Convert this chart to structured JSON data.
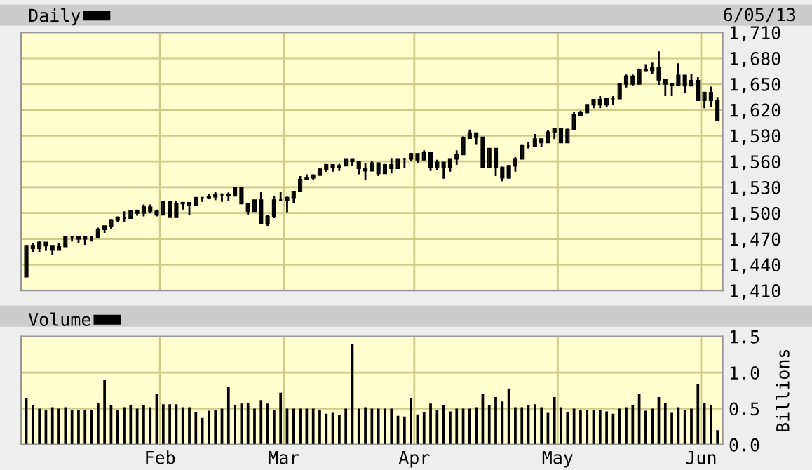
{
  "chart_data": [
    {
      "type": "candlestick",
      "legend": "top left",
      "grid": true,
      "tick_labels": "y",
      "annotations": [
        "6/05/13"
      ],
      "categories": [
        null,
        null,
        null,
        null,
        null,
        null,
        null,
        null,
        null,
        null,
        null,
        null,
        null,
        null,
        null,
        null,
        null,
        null,
        null,
        null,
        null,
        null,
        null,
        null,
        null,
        null,
        null,
        null,
        null,
        null,
        null,
        null,
        null,
        null,
        null,
        null,
        null,
        null,
        null,
        null,
        null,
        null,
        null,
        null,
        null,
        null,
        null,
        null,
        null,
        null,
        null,
        null,
        null,
        null,
        null,
        null,
        null,
        null,
        null,
        null,
        null,
        null,
        null,
        null,
        null,
        null,
        null,
        null,
        null,
        null,
        null,
        null,
        null,
        null,
        null,
        null,
        null,
        null,
        null,
        null,
        null,
        null,
        null,
        null,
        null,
        null,
        null,
        null,
        null,
        null,
        null,
        null,
        null,
        null,
        null,
        null,
        null,
        null,
        null,
        null,
        null,
        null,
        null,
        null,
        null,
        null,
        null
      ],
      "ylim": [
        1410,
        1710
      ],
      "yticks": [
        {
          "value": 1410,
          "label": "1,410"
        },
        {
          "value": 1440,
          "label": "1,440"
        },
        {
          "value": 1470,
          "label": "1,470"
        },
        {
          "value": 1500,
          "label": "1,500"
        },
        {
          "value": 1530,
          "label": "1,530"
        },
        {
          "value": 1560,
          "label": "1,560"
        },
        {
          "value": 1590,
          "label": "1,590"
        },
        {
          "value": 1620,
          "label": "1,620"
        },
        {
          "value": 1650,
          "label": "1,650"
        },
        {
          "value": 1680,
          "label": "1,680"
        },
        {
          "value": 1710,
          "label": "1,710"
        }
      ],
      "series": [
        {
          "name": "Daily",
          "color": "#000000",
          "ohlc": [
            [
              1426,
              1462,
              1426,
              1462
            ],
            [
              1462,
              1465,
              1455,
              1459
            ],
            [
              1459,
              1468,
              1455,
              1466
            ],
            [
              1466,
              1466,
              1456,
              1462
            ],
            [
              1462,
              1462,
              1451,
              1457
            ],
            [
              1457,
              1465,
              1457,
              1461
            ],
            [
              1461,
              1473,
              1461,
              1472
            ],
            [
              1472,
              1473,
              1467,
              1472
            ],
            [
              1472,
              1472,
              1465,
              1470
            ],
            [
              1470,
              1473,
              1463,
              1472
            ],
            [
              1472,
              1473,
              1467,
              1472
            ],
            [
              1472,
              1483,
              1472,
              1481
            ],
            [
              1481,
              1485,
              1477,
              1485
            ],
            [
              1485,
              1493,
              1481,
              1492
            ],
            [
              1492,
              1496,
              1490,
              1494
            ],
            [
              1494,
              1502,
              1490,
              1494
            ],
            [
              1494,
              1503,
              1494,
              1503
            ],
            [
              1503,
              1504,
              1497,
              1500
            ],
            [
              1500,
              1510,
              1496,
              1507
            ],
            [
              1507,
              1510,
              1500,
              1502
            ],
            [
              1502,
              1504,
              1496,
              1498
            ],
            [
              1498,
              1514,
              1498,
              1513
            ],
            [
              1513,
              1513,
              1495,
              1495
            ],
            [
              1495,
              1514,
              1495,
              1511
            ],
            [
              1511,
              1513,
              1504,
              1512
            ],
            [
              1512,
              1512,
              1498,
              1509
            ],
            [
              1509,
              1518,
              1509,
              1518
            ],
            [
              1518,
              1518,
              1513,
              1518
            ],
            [
              1518,
              1522,
              1516,
              1519
            ],
            [
              1519,
              1525,
              1515,
              1521
            ],
            [
              1521,
              1523,
              1513,
              1521
            ],
            [
              1521,
              1524,
              1514,
              1520
            ],
            [
              1520,
              1530,
              1520,
              1530
            ],
            [
              1530,
              1530,
              1511,
              1511
            ],
            [
              1511,
              1511,
              1498,
              1502
            ],
            [
              1502,
              1515,
              1502,
              1515
            ],
            [
              1515,
              1525,
              1488,
              1488
            ],
            [
              1488,
              1498,
              1485,
              1496
            ],
            [
              1496,
              1520,
              1494,
              1515
            ],
            [
              1515,
              1525,
              1514,
              1515
            ],
            [
              1515,
              1519,
              1501,
              1518
            ],
            [
              1518,
              1525,
              1512,
              1525
            ],
            [
              1525,
              1543,
              1525,
              1539
            ],
            [
              1539,
              1545,
              1539,
              1541
            ],
            [
              1541,
              1545,
              1539,
              1544
            ],
            [
              1544,
              1552,
              1544,
              1551
            ],
            [
              1551,
              1557,
              1548,
              1556
            ],
            [
              1556,
              1556,
              1548,
              1553
            ],
            [
              1553,
              1557,
              1549,
              1555
            ],
            [
              1555,
              1563,
              1555,
              1563
            ],
            [
              1563,
              1563,
              1555,
              1560
            ],
            [
              1560,
              1560,
              1545,
              1552
            ],
            [
              1552,
              1558,
              1538,
              1549
            ],
            [
              1549,
              1561,
              1549,
              1558
            ],
            [
              1558,
              1558,
              1543,
              1546
            ],
            [
              1546,
              1557,
              1546,
              1556
            ],
            [
              1556,
              1564,
              1546,
              1552
            ],
            [
              1552,
              1563,
              1552,
              1563
            ],
            [
              1563,
              1564,
              1552,
              1563
            ],
            [
              1563,
              1570,
              1561,
              1569
            ],
            [
              1569,
              1570,
              1558,
              1562
            ],
            [
              1562,
              1573,
              1562,
              1570
            ],
            [
              1570,
              1571,
              1549,
              1553
            ],
            [
              1553,
              1562,
              1550,
              1559
            ],
            [
              1559,
              1559,
              1540,
              1553
            ],
            [
              1553,
              1563,
              1548,
              1563
            ],
            [
              1563,
              1573,
              1556,
              1568
            ],
            [
              1568,
              1589,
              1568,
              1587
            ],
            [
              1587,
              1597,
              1587,
              1593
            ],
            [
              1593,
              1593,
              1580,
              1588
            ],
            [
              1588,
              1588,
              1553,
              1553
            ],
            [
              1553,
              1575,
              1553,
              1575
            ],
            [
              1575,
              1575,
              1543,
              1553
            ],
            [
              1553,
              1554,
              1537,
              1541
            ],
            [
              1541,
              1556,
              1540,
              1555
            ],
            [
              1555,
              1565,
              1548,
              1563
            ],
            [
              1563,
              1580,
              1563,
              1578
            ],
            [
              1578,
              1583,
              1575,
              1578
            ],
            [
              1578,
              1592,
              1578,
              1586
            ],
            [
              1586,
              1586,
              1577,
              1582
            ],
            [
              1582,
              1596,
              1582,
              1594
            ],
            [
              1594,
              1598,
              1586,
              1598
            ],
            [
              1598,
              1598,
              1582,
              1582
            ],
            [
              1582,
              1598,
              1582,
              1597
            ],
            [
              1597,
              1618,
              1597,
              1614
            ],
            [
              1614,
              1619,
              1613,
              1617
            ],
            [
              1617,
              1626,
              1616,
              1626
            ],
            [
              1626,
              1632,
              1622,
              1632
            ],
            [
              1632,
              1636,
              1622,
              1626
            ],
            [
              1626,
              1633,
              1623,
              1633
            ],
            [
              1633,
              1636,
              1626,
              1633
            ],
            [
              1633,
              1651,
              1633,
              1650
            ],
            [
              1650,
              1661,
              1646,
              1659
            ],
            [
              1659,
              1661,
              1648,
              1650
            ],
            [
              1650,
              1668,
              1650,
              1667
            ],
            [
              1667,
              1673,
              1665,
              1666
            ],
            [
              1666,
              1675,
              1662,
              1669
            ],
            [
              1669,
              1688,
              1649,
              1655
            ],
            [
              1655,
              1655,
              1636,
              1650
            ],
            [
              1650,
              1650,
              1636,
              1649
            ],
            [
              1649,
              1674,
              1649,
              1660
            ],
            [
              1660,
              1660,
              1640,
              1648
            ],
            [
              1648,
              1662,
              1648,
              1654
            ],
            [
              1654,
              1658,
              1631,
              1631
            ],
            [
              1631,
              1641,
              1622,
              1640
            ],
            [
              1640,
              1647,
              1623,
              1631
            ],
            [
              1631,
              1635,
              1608,
              1608
            ]
          ]
        }
      ]
    },
    {
      "type": "bar",
      "legend": "top left",
      "grid": true,
      "ylabel": "Billions",
      "categories": [
        null,
        null,
        null,
        null,
        null,
        null,
        null,
        null,
        null,
        null,
        null,
        null,
        null,
        null,
        null,
        null,
        null,
        null,
        null,
        null,
        null,
        "Feb",
        null,
        null,
        null,
        null,
        null,
        null,
        null,
        null,
        null,
        null,
        null,
        null,
        null,
        null,
        null,
        null,
        null,
        null,
        "Mar",
        null,
        null,
        null,
        null,
        null,
        null,
        null,
        null,
        null,
        null,
        null,
        null,
        null,
        null,
        null,
        null,
        null,
        null,
        null,
        "Apr",
        null,
        null,
        null,
        null,
        null,
        null,
        null,
        null,
        null,
        null,
        null,
        null,
        null,
        null,
        null,
        null,
        null,
        null,
        null,
        null,
        null,
        "May",
        null,
        null,
        null,
        null,
        null,
        null,
        null,
        null,
        null,
        null,
        null,
        null,
        null,
        null,
        null,
        null,
        null,
        null,
        null,
        null,
        null,
        "Jun",
        null,
        null
      ],
      "ylim": [
        0,
        1.5
      ],
      "yticks": [
        {
          "value": 0,
          "label": "0.0"
        },
        {
          "value": 0.5,
          "label": "0.5"
        },
        {
          "value": 1,
          "label": "1.0"
        },
        {
          "value": 1.5,
          "label": "1.5"
        }
      ],
      "series": [
        {
          "name": "Volume",
          "color": "#000000",
          "values": [
            0.65,
            0.55,
            0.5,
            0.48,
            0.52,
            0.5,
            0.52,
            0.48,
            0.48,
            0.48,
            0.48,
            0.58,
            0.9,
            0.55,
            0.48,
            0.52,
            0.55,
            0.5,
            0.55,
            0.52,
            0.7,
            0.56,
            0.56,
            0.56,
            0.52,
            0.52,
            0.45,
            0.37,
            0.47,
            0.48,
            0.5,
            0.8,
            0.55,
            0.57,
            0.58,
            0.5,
            0.62,
            0.57,
            0.48,
            0.72,
            0.5,
            0.5,
            0.5,
            0.5,
            0.5,
            0.48,
            0.43,
            0.44,
            0.41,
            0.5,
            1.4,
            0.5,
            0.52,
            0.5,
            0.5,
            0.5,
            0.5,
            0.4,
            0.39,
            0.65,
            0.42,
            0.45,
            0.57,
            0.48,
            0.55,
            0.46,
            0.5,
            0.5,
            0.5,
            0.52,
            0.7,
            0.55,
            0.66,
            0.6,
            0.78,
            0.52,
            0.52,
            0.55,
            0.56,
            0.52,
            0.44,
            0.66,
            0.52,
            0.45,
            0.5,
            0.48,
            0.48,
            0.48,
            0.48,
            0.46,
            0.43,
            0.5,
            0.52,
            0.55,
            0.7,
            0.47,
            0.5,
            0.66,
            0.58,
            0.44,
            0.52,
            0.48,
            0.5,
            0.84,
            0.58,
            0.55,
            0.2
          ]
        }
      ]
    }
  ]
}
